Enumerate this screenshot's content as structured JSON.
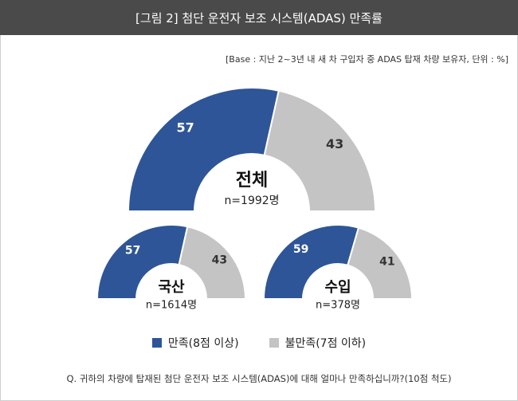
{
  "header": {
    "title": "[그림 2] 첨단 운전자 보조 시스템(ADAS) 만족률"
  },
  "base_note": "[Base : 지난 2~3년 내 새 차 구입자 중 ADAS 탑재 차량 보유자, 단위 : %]",
  "colors": {
    "satisfied": "#2e5597",
    "unsatisfied": "#c4c4c4",
    "header_bg": "#4a4a4a"
  },
  "legend": {
    "satisfied": "만족(8점 이상)",
    "unsatisfied": "불만족(7점 이하)"
  },
  "question": "Q. 귀하의 차량에 탑재된 첨단 운전자 보조 시스템(ADAS)에 대해 얼마나 만족하십니까?(10점 척도)",
  "chart_data": [
    {
      "type": "pie",
      "group": "전체",
      "n_label": "n=1992명",
      "categories": [
        "만족(8점 이상)",
        "불만족(7점 이하)"
      ],
      "values": [
        57,
        43
      ]
    },
    {
      "type": "pie",
      "group": "국산",
      "n_label": "n=1614명",
      "categories": [
        "만족(8점 이상)",
        "불만족(7점 이하)"
      ],
      "values": [
        57,
        43
      ]
    },
    {
      "type": "pie",
      "group": "수입",
      "n_label": "n=378명",
      "categories": [
        "만족(8점 이상)",
        "불만족(7점 이하)"
      ],
      "values": [
        59,
        41
      ]
    }
  ]
}
